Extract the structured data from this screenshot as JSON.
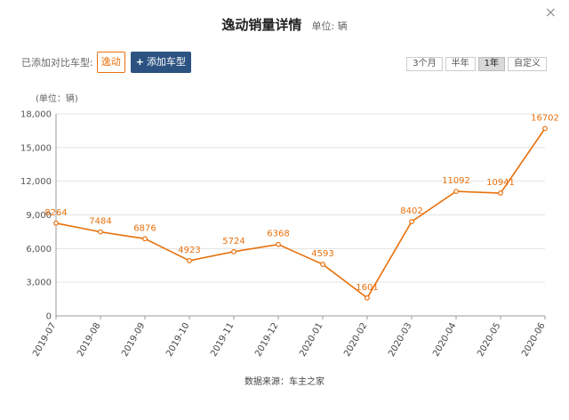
{
  "header": {
    "title": "逸动销量详情",
    "unit": "单位: 辆",
    "close_glyph": "×"
  },
  "compare": {
    "label": "已添加对比车型:",
    "selected_model": "逸动",
    "add_button": "添加车型",
    "add_icon_glyph": "+"
  },
  "range_tabs": [
    {
      "label": "3个月",
      "active": false
    },
    {
      "label": "半年",
      "active": false
    },
    {
      "label": "1年",
      "active": true
    },
    {
      "label": "自定义",
      "active": false
    }
  ],
  "footer": {
    "source": "数据来源：车主之家"
  },
  "colors": {
    "series": "#e8700c",
    "accent_button": "#2c5282"
  },
  "chart_data": {
    "type": "line",
    "ylabel": "(单位：辆)",
    "ylim": [
      0,
      18000
    ],
    "yticks": [
      0,
      3000,
      6000,
      9000,
      12000,
      15000,
      18000
    ],
    "ytick_labels": [
      "0",
      "3,000",
      "6,000",
      "9,000",
      "12,000",
      "15,000",
      "18,000"
    ],
    "grid": true,
    "x": [
      "2019-07",
      "2019-08",
      "2019-09",
      "2019-10",
      "2019-11",
      "2019-12",
      "2020-01",
      "2020-02",
      "2020-03",
      "2020-04",
      "2020-05",
      "2020-06"
    ],
    "series": [
      {
        "values": [
          8264,
          7484,
          6876,
          4923,
          5724,
          6368,
          4593,
          1601,
          8402,
          11092,
          10941,
          16702
        ]
      }
    ]
  }
}
